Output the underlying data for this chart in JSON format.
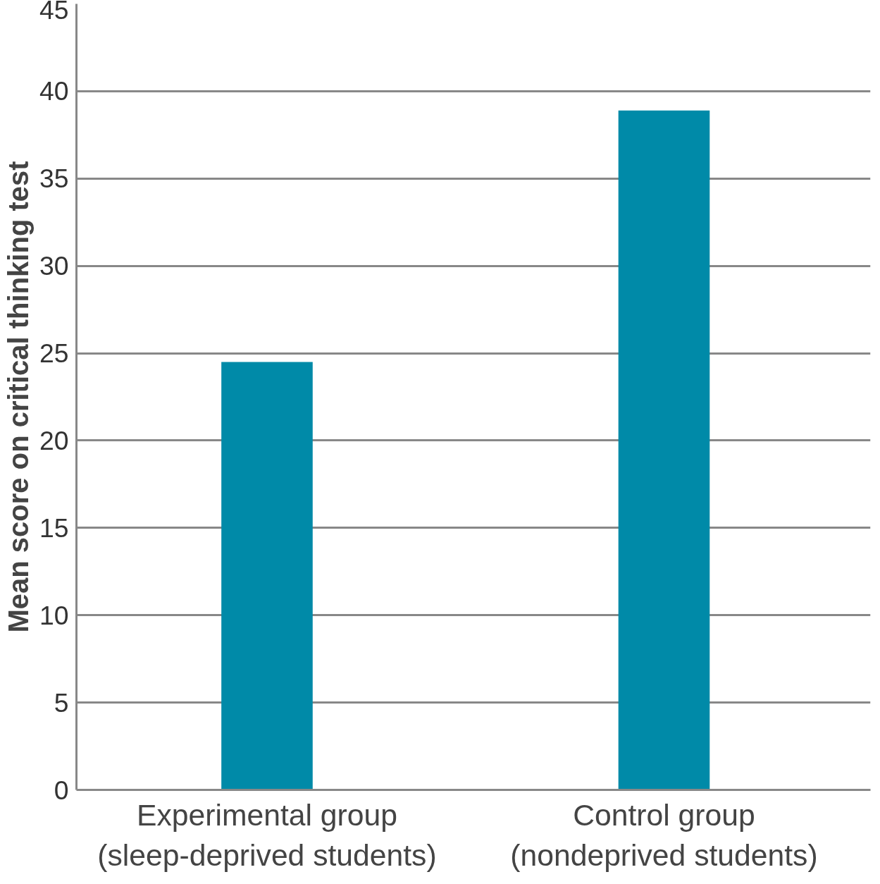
{
  "chart_data": {
    "type": "bar",
    "ylabel": "Mean score on critical thinking test",
    "categories": [
      "Experimental group\n(sleep-deprived students)",
      "Control group\n(nondeprived students)"
    ],
    "values": [
      24.5,
      38.9
    ],
    "color": "#008aa8",
    "ylim": [
      0,
      45
    ],
    "yticks": [
      0,
      5,
      10,
      15,
      20,
      25,
      30,
      35,
      40,
      45
    ],
    "grid": "y"
  }
}
